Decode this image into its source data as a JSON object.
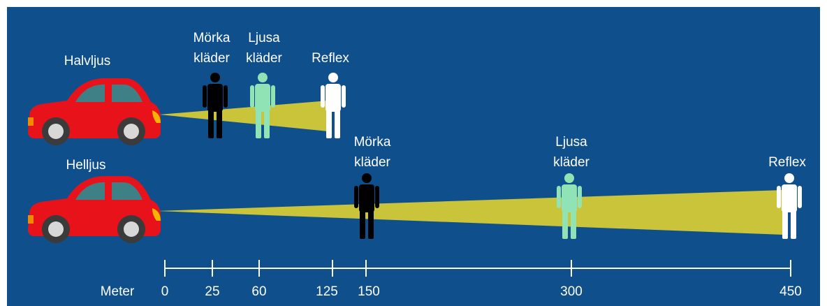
{
  "rows": [
    {
      "label": "Halvljus",
      "figures": [
        {
          "label": [
            "Mörka",
            "kläder"
          ]
        },
        {
          "label": [
            "Ljusa",
            "kläder"
          ]
        },
        {
          "label": [
            "Reflex"
          ]
        }
      ]
    },
    {
      "label": "Helljus",
      "figures": [
        {
          "label": [
            "Mörka",
            "kläder"
          ]
        },
        {
          "label": [
            "Ljusa",
            "kläder"
          ]
        },
        {
          "label": [
            "Reflex"
          ]
        }
      ]
    }
  ],
  "scale": {
    "label": "Meter",
    "ticks": [
      0,
      25,
      60,
      125,
      150,
      300,
      450
    ]
  }
}
